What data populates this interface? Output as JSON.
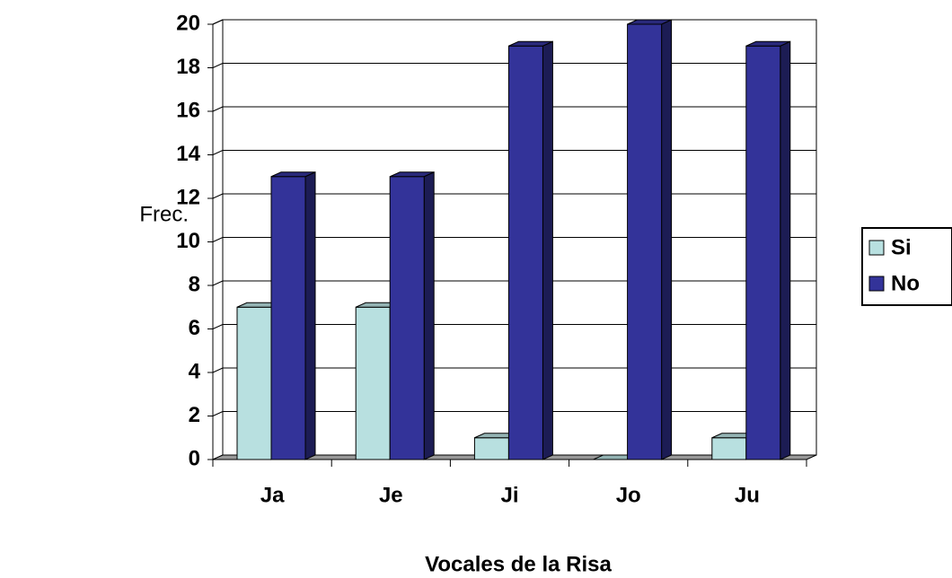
{
  "chart_data": {
    "type": "bar",
    "x_label": "Vocales de la Risa",
    "y_label": "Frec.",
    "categories": [
      "Ja",
      "Je",
      "Ji",
      "Jo",
      "Ju"
    ],
    "series": [
      {
        "name": "Si",
        "color": "#b8e0e0",
        "values": [
          7,
          7,
          1,
          0,
          1
        ]
      },
      {
        "name": "No",
        "color": "#333399",
        "values": [
          13,
          13,
          19,
          20,
          19
        ]
      }
    ],
    "ylim": [
      0,
      20
    ],
    "yticks": [
      0,
      2,
      4,
      6,
      8,
      10,
      12,
      14,
      16,
      18,
      20
    ],
    "grid": true,
    "legend": "right"
  }
}
